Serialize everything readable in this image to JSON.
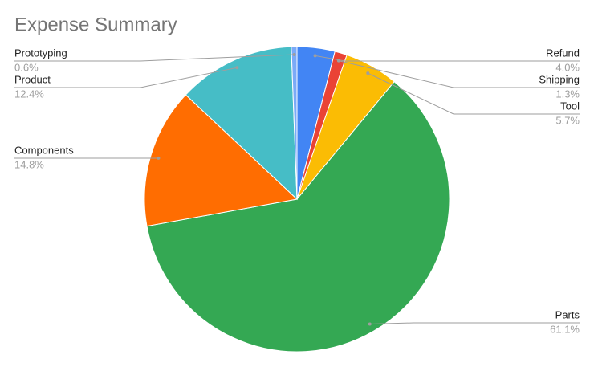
{
  "chart_data": {
    "type": "pie",
    "title": "Expense Summary",
    "categories": [
      "Refund",
      "Shipping",
      "Tool",
      "Parts",
      "Components",
      "Product",
      "Prototyping"
    ],
    "values": [
      4.0,
      1.3,
      5.7,
      61.1,
      14.8,
      12.4,
      0.6
    ],
    "value_labels": [
      "4.0%",
      "1.3%",
      "5.7%",
      "61.1%",
      "14.8%",
      "12.4%",
      "0.6%"
    ],
    "colors": [
      "#4285f4",
      "#ea4335",
      "#fbbc04",
      "#34a853",
      "#ff6d01",
      "#46bdc6",
      "#7baaf7"
    ]
  }
}
